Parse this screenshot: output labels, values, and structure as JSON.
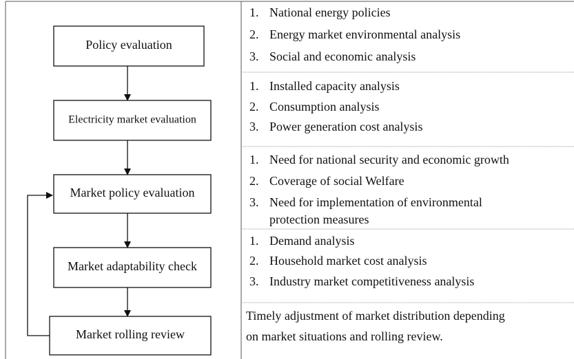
{
  "nodes": [
    {
      "label": "Policy evaluation",
      "items": [
        {
          "num": "1.",
          "lines": [
            "National energy policies"
          ]
        },
        {
          "num": "2.",
          "lines": [
            "Energy market environmental analysis"
          ]
        },
        {
          "num": "3.",
          "lines": [
            "Social and economic analysis"
          ]
        }
      ]
    },
    {
      "label": "Electricity market evaluation",
      "items": [
        {
          "num": "1.",
          "lines": [
            "Installed capacity analysis"
          ]
        },
        {
          "num": "2.",
          "lines": [
            "Consumption analysis"
          ]
        },
        {
          "num": "3.",
          "lines": [
            "Power generation cost analysis"
          ]
        }
      ]
    },
    {
      "label": "Market policy evaluation",
      "items": [
        {
          "num": "1.",
          "lines": [
            "Need for national security and economic growth"
          ]
        },
        {
          "num": "2.",
          "lines": [
            "Coverage of social Welfare"
          ]
        },
        {
          "num": "3.",
          "lines": [
            "Need for implementation of environmental",
            "protection measures"
          ]
        }
      ]
    },
    {
      "label": "Market adaptability check",
      "items": [
        {
          "num": "1.",
          "lines": [
            "Demand analysis"
          ]
        },
        {
          "num": "2.",
          "lines": [
            "Household market cost analysis"
          ]
        },
        {
          "num": "3.",
          "lines": [
            "Industry market competitiveness analysis"
          ]
        }
      ]
    },
    {
      "label": "Market rolling review",
      "paragraph": [
        "Timely adjustment of market distribution depending",
        "on market situations and rolling review."
      ]
    }
  ]
}
